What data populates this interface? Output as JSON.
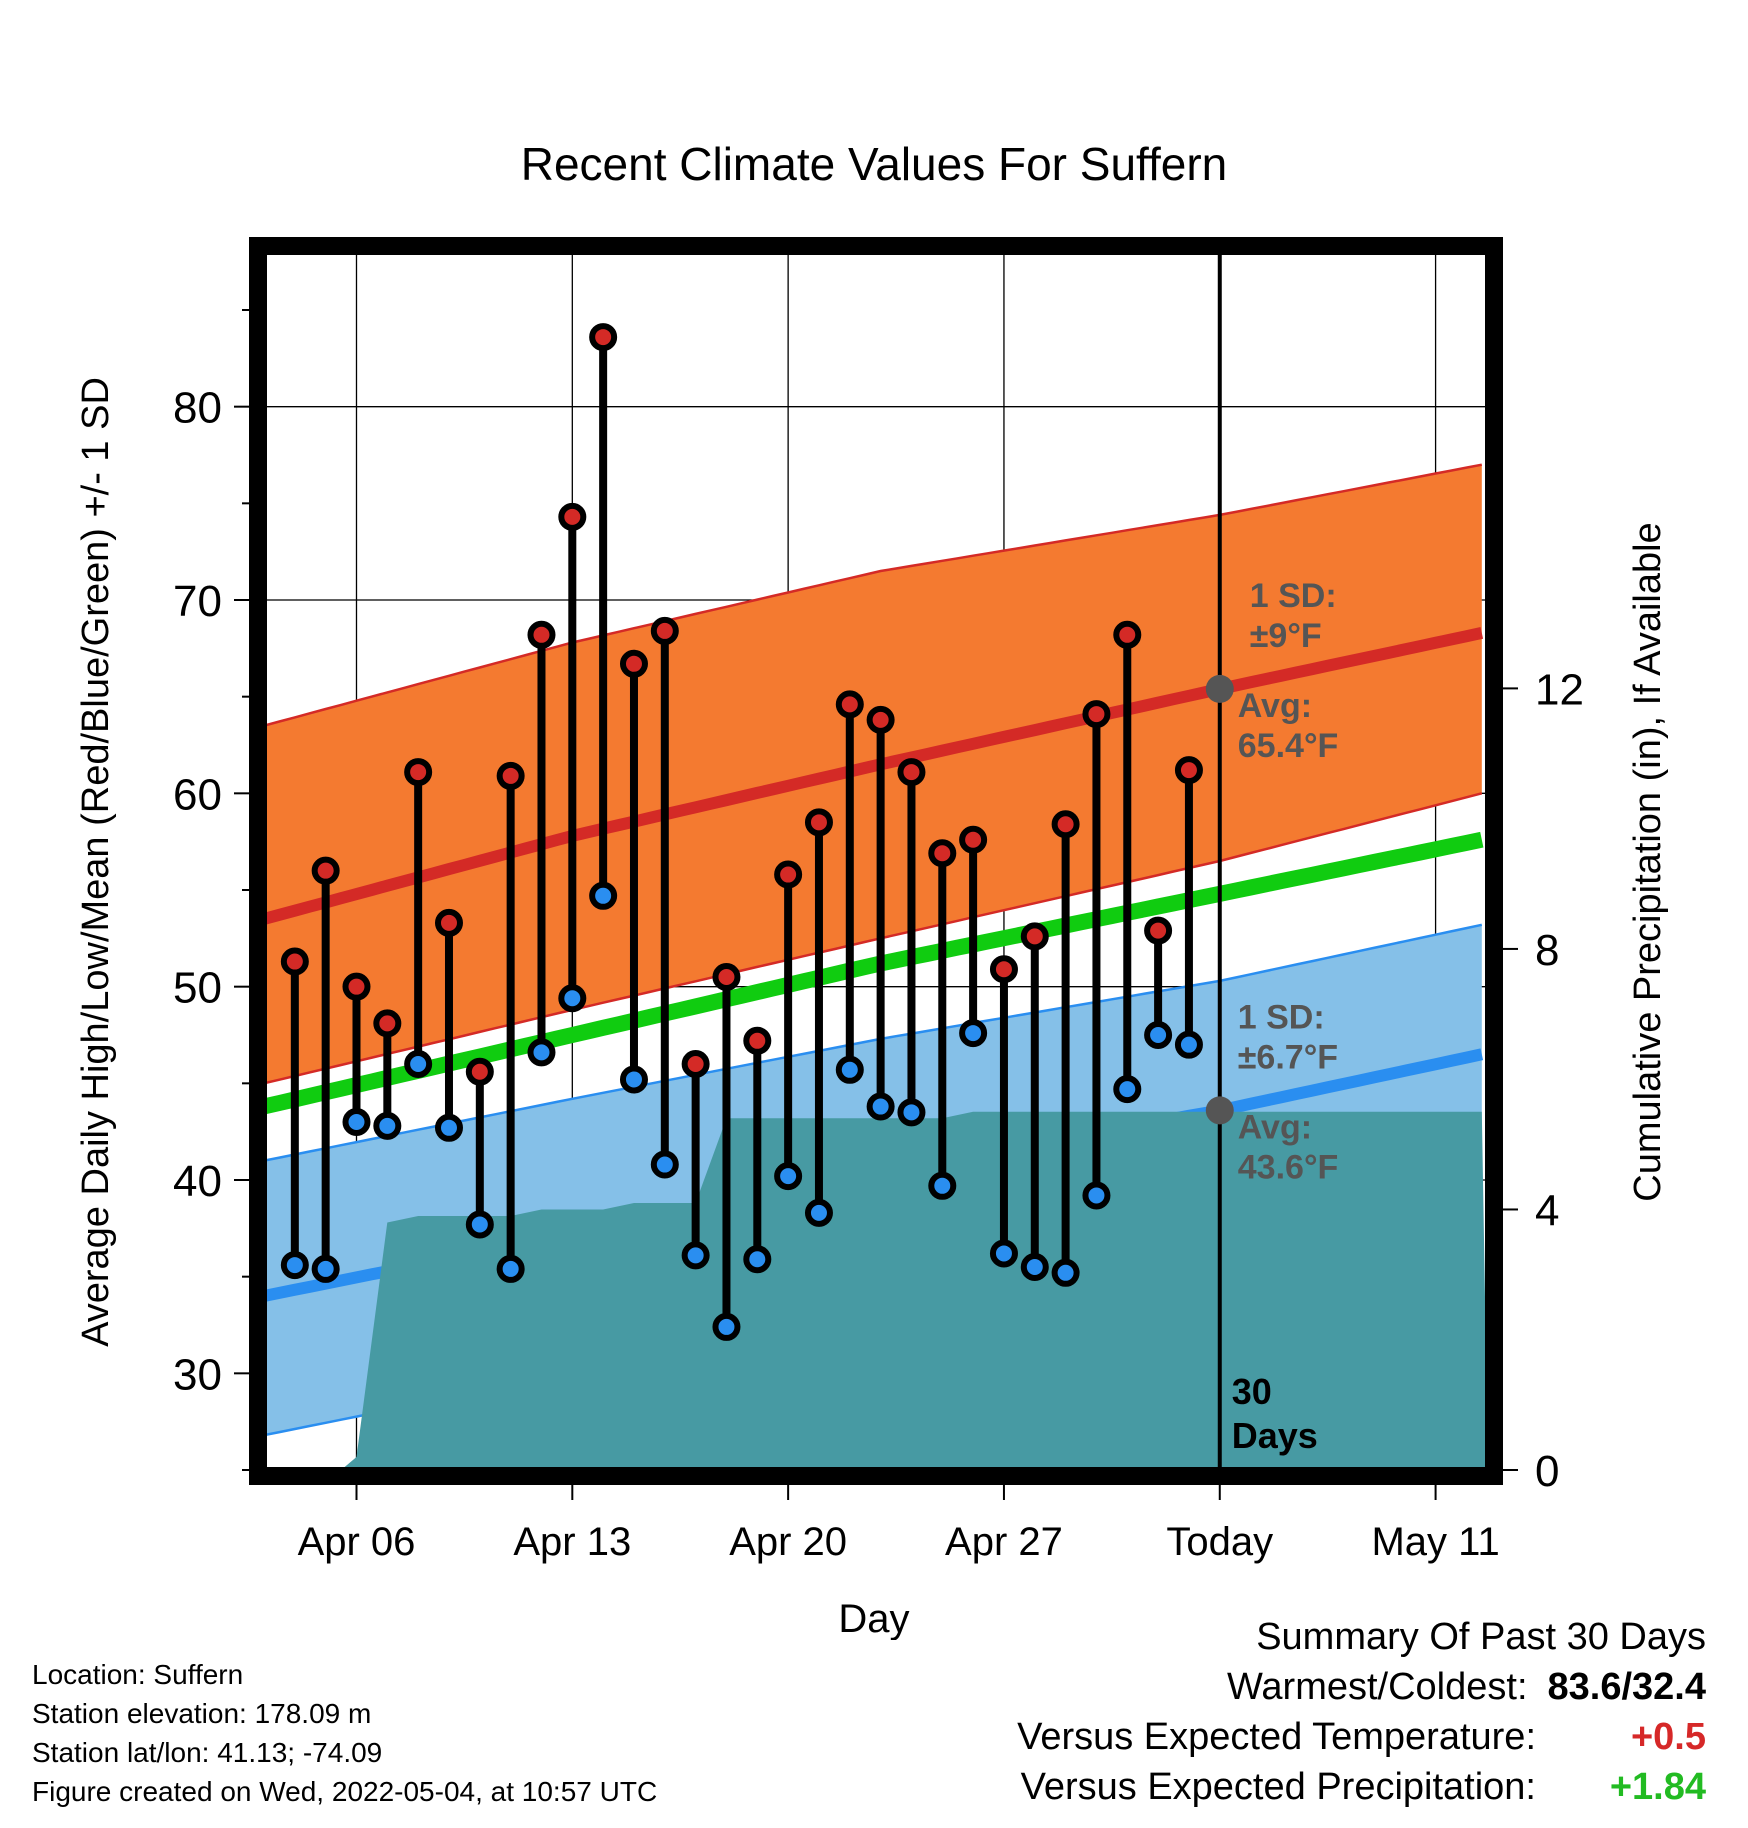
{
  "chart_data": {
    "type": "line",
    "title": "Recent Climate Values For Suffern",
    "xlabel": "Day",
    "ylabel": "Average Daily High/Low/Mean (Red/Blue/Green) +/- 1 SD",
    "y2label": "Cumulative Precipitation (in), If Available",
    "ylim": [
      25,
      88
    ],
    "y2lim": [
      0,
      18.7
    ],
    "xlim": [
      0,
      39.7
    ],
    "yticks": [
      30,
      40,
      50,
      60,
      70,
      80
    ],
    "y2ticks": [
      0,
      4,
      8,
      12
    ],
    "xticks": [
      {
        "x": 3,
        "label": "Apr 06"
      },
      {
        "x": 10,
        "label": "Apr 13"
      },
      {
        "x": 17,
        "label": "Apr 20"
      },
      {
        "x": 24,
        "label": "Apr 27"
      },
      {
        "x": 31,
        "label": "Today"
      },
      {
        "x": 38,
        "label": "May 11"
      }
    ],
    "grid": true,
    "today_x": 31,
    "today_label_line1": "30",
    "today_label_line2": "Days",
    "normal_high": {
      "x": [
        0,
        10,
        20,
        31,
        39.5
      ],
      "values": [
        53.5,
        57.8,
        61.5,
        65.4,
        68.3
      ]
    },
    "normal_high_sd_upper": {
      "x": [
        0,
        10,
        20,
        31,
        39.5
      ],
      "values": [
        63.5,
        67.8,
        71.5,
        74.4,
        77.0
      ]
    },
    "normal_high_sd_lower": {
      "x": [
        0,
        10,
        20,
        31,
        39.5
      ],
      "values": [
        45.0,
        48.8,
        52.5,
        56.5,
        60.0
      ]
    },
    "normal_mean": {
      "x": [
        0,
        10,
        20,
        31,
        39.5
      ],
      "values": [
        43.8,
        47.5,
        51.2,
        54.8,
        57.6
      ]
    },
    "normal_low": {
      "x": [
        0,
        10,
        20,
        31,
        39.5
      ],
      "values": [
        34.0,
        37.2,
        40.5,
        43.6,
        46.5
      ]
    },
    "normal_low_sd_upper": {
      "x": [
        0,
        10,
        20,
        31,
        39.5
      ],
      "values": [
        41.0,
        44.2,
        47.3,
        50.3,
        53.2
      ]
    },
    "normal_low_sd_lower": {
      "x": [
        0,
        10,
        20,
        31,
        39.5
      ],
      "values": [
        26.8,
        30.0,
        33.8,
        37.2,
        40.4
      ]
    },
    "high_marker": {
      "x": 31,
      "value": 65.4
    },
    "low_marker": {
      "x": 31,
      "value": 43.6
    },
    "high_sd_label_line1": "1 SD:",
    "high_sd_label_line2": "±9°F",
    "high_avg_label_line1": "Avg:",
    "high_avg_label_line2": "65.4°F",
    "low_sd_label_line1": "1 SD:",
    "low_sd_label_line2": "±6.7°F",
    "low_avg_label_line1": "Avg:",
    "low_avg_label_line2": "43.6°F",
    "precipitation": {
      "x": [
        2.5,
        3,
        4,
        5,
        6,
        7,
        8,
        9,
        10,
        11,
        12,
        13,
        14,
        15,
        16,
        17,
        18,
        19,
        20,
        21,
        22,
        23,
        24,
        25,
        26,
        27,
        28,
        29,
        30,
        31,
        32,
        33,
        34,
        35,
        36,
        37,
        38,
        39.5
      ],
      "values": [
        0,
        0.2,
        3.8,
        3.9,
        3.9,
        3.9,
        3.9,
        4.0,
        4.0,
        4.0,
        4.1,
        4.1,
        4.1,
        5.4,
        5.4,
        5.4,
        5.4,
        5.4,
        5.4,
        5.4,
        5.4,
        5.5,
        5.5,
        5.5,
        5.5,
        5.5,
        5.5,
        5.5,
        5.5,
        5.5,
        5.5,
        5.5,
        5.5,
        5.5,
        5.5,
        5.5,
        5.5,
        5.5
      ]
    },
    "series": [
      {
        "name": "High",
        "x": [
          1,
          2,
          3,
          4,
          5,
          6,
          7,
          8,
          9,
          10,
          11,
          12,
          13,
          14,
          15,
          16,
          17,
          18,
          19,
          20,
          21,
          22,
          23,
          24,
          25,
          26,
          27,
          28,
          29,
          30
        ],
        "values": [
          51.3,
          56.0,
          50.0,
          48.1,
          61.1,
          53.3,
          45.6,
          60.9,
          68.2,
          74.3,
          83.6,
          66.7,
          68.4,
          46.0,
          50.5,
          47.2,
          55.8,
          58.5,
          64.6,
          63.8,
          61.1,
          56.9,
          57.6,
          50.9,
          52.6,
          58.4,
          64.1,
          68.2,
          52.9,
          61.2
        ]
      },
      {
        "name": "Low",
        "x": [
          1,
          2,
          3,
          4,
          5,
          6,
          7,
          8,
          9,
          10,
          11,
          12,
          13,
          14,
          15,
          16,
          17,
          18,
          19,
          20,
          21,
          22,
          23,
          24,
          25,
          26,
          27,
          28,
          29,
          30
        ],
        "values": [
          35.6,
          35.4,
          43.0,
          42.8,
          46.0,
          42.7,
          37.7,
          35.4,
          46.6,
          49.4,
          54.7,
          45.2,
          40.8,
          36.1,
          32.4,
          35.9,
          40.2,
          38.3,
          45.7,
          43.8,
          43.5,
          39.7,
          47.6,
          36.2,
          35.5,
          35.2,
          39.2,
          44.7,
          47.5,
          47.0
        ]
      }
    ]
  },
  "footer": {
    "location": "Location: Suffern",
    "elevation": "Station elevation: 178.09 m",
    "latlon": "Station lat/lon: 41.13; -74.09",
    "created": "Figure created on Wed, 2022-05-04, at 10:57 UTC"
  },
  "summary": {
    "heading": "Summary Of Past 30 Days",
    "warmest_label": "Warmest/Coldest:",
    "warmest_value": "83.6/32.4",
    "temp_label": "Versus Expected Temperature:",
    "temp_value": "+0.5",
    "precip_label": "Versus Expected Precipitation:",
    "precip_value": "+1.84",
    "colors": {
      "temp": "#d62828",
      "precip": "#22bb22"
    }
  },
  "colors": {
    "high_band": "#f47a30",
    "high_line": "#d42a26",
    "low_band": "#85c0e8",
    "low_line": "#2a8ef0",
    "mean_line": "#10cc10",
    "precip": "#479aa3",
    "high_point": "#d42a26",
    "low_point": "#2a8ef0",
    "marker": "#555555"
  }
}
